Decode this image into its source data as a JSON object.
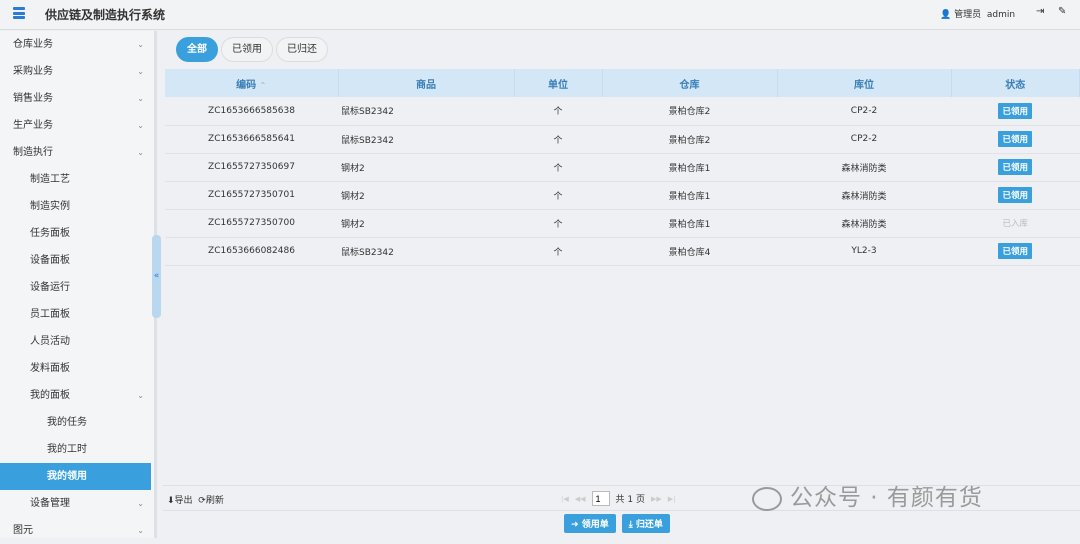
{
  "header": {
    "title": "供应链及制造执行系统",
    "role": "管理员",
    "user": "admin"
  },
  "sidebar": {
    "items": [
      {
        "label": "仓库业务",
        "level": 1,
        "chev": "⌄"
      },
      {
        "label": "采购业务",
        "level": 1,
        "chev": "⌄"
      },
      {
        "label": "销售业务",
        "level": 1,
        "chev": "⌄"
      },
      {
        "label": "生产业务",
        "level": 1,
        "chev": "⌄"
      },
      {
        "label": "制造执行",
        "level": 1,
        "chev": "⌄"
      },
      {
        "label": "制造工艺",
        "level": 2
      },
      {
        "label": "制造实例",
        "level": 2
      },
      {
        "label": "任务面板",
        "level": 2
      },
      {
        "label": "设备面板",
        "level": 2
      },
      {
        "label": "设备运行",
        "level": 2
      },
      {
        "label": "员工面板",
        "level": 2
      },
      {
        "label": "人员活动",
        "level": 2
      },
      {
        "label": "发料面板",
        "level": 2
      },
      {
        "label": "我的面板",
        "level": 2,
        "chev": "⌄"
      },
      {
        "label": "我的任务",
        "level": 3
      },
      {
        "label": "我的工时",
        "level": 3
      },
      {
        "label": "我的领用",
        "level": 3,
        "active": true
      },
      {
        "label": "设备管理",
        "level": 2,
        "chev": "⌄"
      },
      {
        "label": "图元",
        "level": 1,
        "chev": "⌄"
      }
    ],
    "collapse": "«"
  },
  "tabs": [
    "全部",
    "已领用",
    "已归还"
  ],
  "table": {
    "columns": [
      "编码",
      "商品",
      "单位",
      "仓库",
      "库位",
      "状态"
    ],
    "sort_indicator": "⌃",
    "rows": [
      [
        "ZC1653666585638",
        "鼠标SB2342",
        "个",
        "景柏仓库2",
        "CP2-2",
        "已领用"
      ],
      [
        "ZC1653666585641",
        "鼠标SB2342",
        "个",
        "景柏仓库2",
        "CP2-2",
        "已领用"
      ],
      [
        "ZC1655727350697",
        "钢材2",
        "个",
        "景柏仓库1",
        "森林消防类",
        "已领用"
      ],
      [
        "ZC1655727350701",
        "钢材2",
        "个",
        "景柏仓库1",
        "森林消防类",
        "已领用"
      ],
      [
        "ZC1655727350700",
        "钢材2",
        "个",
        "景柏仓库1",
        "森林消防类",
        "已入库"
      ],
      [
        "ZC1653666082486",
        "鼠标SB2342",
        "个",
        "景柏仓库4",
        "YL2-3",
        "已领用"
      ]
    ]
  },
  "footer": {
    "export": "导出",
    "refresh": "刷新",
    "page": "1",
    "total": "共 1 页"
  },
  "actions": {
    "borrow": "领用单",
    "return": "归还单"
  },
  "watermark": "公众号 · 有颜有货",
  "colors": {
    "accent": "#3aa0dd",
    "header_bg": "#d3e7f6"
  }
}
